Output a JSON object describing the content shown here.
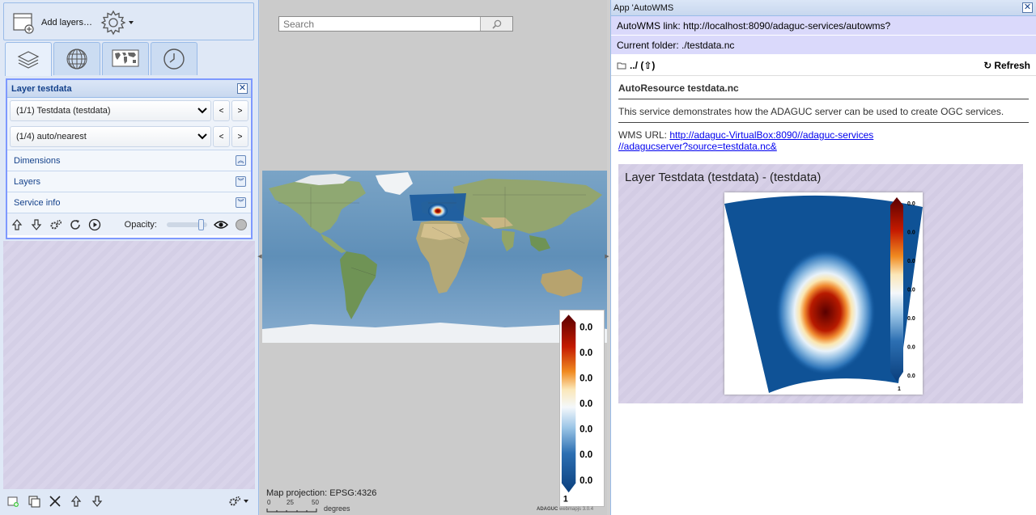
{
  "left": {
    "toolbar": {
      "add_layers_label": "Add layers…"
    },
    "tabs": [
      {
        "name": "layers",
        "icon": "layers-icon"
      },
      {
        "name": "globe",
        "icon": "globe-icon"
      },
      {
        "name": "world-map",
        "icon": "world-map-icon"
      },
      {
        "name": "clock",
        "icon": "clock-icon"
      }
    ],
    "layer_panel": {
      "title": "Layer testdata",
      "layer_select": "(1/1) Testdata (testdata)",
      "style_select": "(1/4) auto/nearest",
      "prev_label": "<",
      "next_label": ">",
      "sections": [
        "Dimensions",
        "Layers",
        "Service info"
      ],
      "opacity_label": "Opacity:",
      "opacity": 0.9
    }
  },
  "center": {
    "search_placeholder": "Search",
    "map_projection": "Map projection: EPSG:4326",
    "scale": {
      "ticks": [
        "0",
        "25",
        "50"
      ],
      "unit": "degrees"
    },
    "credit_brand": "ADAGUC",
    "credit_text": "webmapjs 3.0.4",
    "legend": {
      "labels": [
        "0.0",
        "0.0",
        "0.0",
        "0.0",
        "0.0",
        "0.0",
        "0.0"
      ],
      "bottom_label": "1"
    }
  },
  "right": {
    "title": "App 'AutoWMS",
    "autowms_link": "AutoWMS link: http://localhost:8090/adaguc-services/autowms?",
    "current_folder": "Current folder: ./testdata.nc",
    "folder_up": "../ (⇧)",
    "refresh_label": "Refresh",
    "resource_title": "AutoResource testdata.nc",
    "resource_desc": "This service demonstrates how the ADAGUC server can be used to create OGC services.",
    "wms_prefix": "WMS URL: ",
    "wms_url_line1": "http://adaguc-VirtualBox:8090//adaguc-services",
    "wms_url_line2": "//adagucserver?source=testdata.nc&",
    "preview_title": "Layer Testdata (testdata) - (testdata)",
    "preview_legend": {
      "labels": [
        "0.0",
        "0.0",
        "0.0",
        "0.0",
        "0.0",
        "0.0",
        "0.0"
      ],
      "bottom_label": "1"
    }
  },
  "colors": {
    "accent": "#15428b",
    "panel_border": "#7e99ff",
    "link": "#0000ee"
  }
}
